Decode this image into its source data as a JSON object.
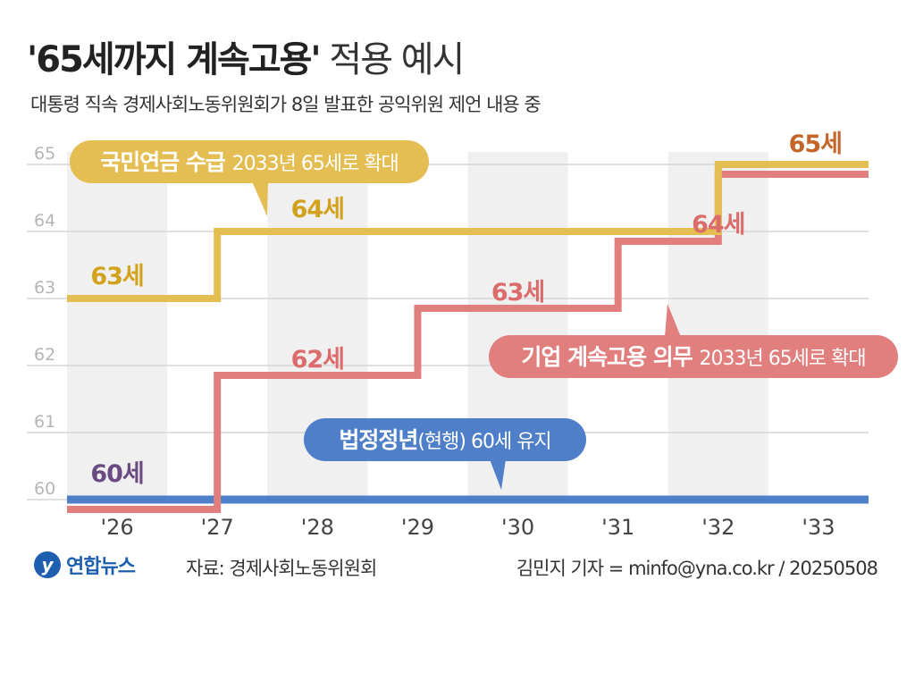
{
  "title": {
    "bold": "'65세까지 계속고용'",
    "light": "적용 예시"
  },
  "subtitle": "대통령 직속 경제사회노동위원회가 8일 발표한 공익위원 제언 내용 중",
  "colors": {
    "pension": "#e4be52",
    "pension_text": "#d3a21d",
    "employment": "#e17f7e",
    "employment_text": "#dc6b6b",
    "retirement": "#4f7fc9",
    "current_label": "#6b4a84",
    "last_label": "#c4652a",
    "band": "#f0f0f0",
    "grid": "#d6d6d6",
    "axis_text": "#444444",
    "ytick_text": "#b5b5b5"
  },
  "chart_data": {
    "type": "line",
    "step": true,
    "title": "'65세까지 계속고용' 적용 예시",
    "xlabel": "",
    "ylabel": "",
    "categories": [
      "'26",
      "'27",
      "'28",
      "'29",
      "'30",
      "'31",
      "'32",
      "'33"
    ],
    "yticks": [
      60,
      61,
      62,
      63,
      64,
      65
    ],
    "ylim": [
      60,
      65
    ],
    "grid": true,
    "series": [
      {
        "name": "국민연금 수급",
        "values": [
          63,
          63,
          64,
          64,
          64,
          64,
          64,
          65
        ],
        "labels": [
          {
            "index": 0,
            "text": "63세"
          },
          {
            "index": 2,
            "text": "64세"
          },
          {
            "index": 7,
            "text": "65세"
          }
        ],
        "callout": {
          "bold": "국민연금 수급",
          "light": "2033년 65세로 확대"
        }
      },
      {
        "name": "기업 계속고용 의무",
        "values": [
          60,
          60,
          62,
          62,
          63,
          63,
          64,
          65
        ],
        "labels": [
          {
            "index": 0,
            "text": "60세"
          },
          {
            "index": 2,
            "text": "62세"
          },
          {
            "index": 4,
            "text": "63세"
          },
          {
            "index": 6,
            "text": "64세"
          }
        ],
        "callout": {
          "bold": "기업 계속고용 의무",
          "light": "2033년 65세로 확대"
        }
      },
      {
        "name": "법정정년(현행)",
        "values": [
          60,
          60,
          60,
          60,
          60,
          60,
          60,
          60
        ],
        "callout": {
          "bold": "법정정년",
          "paren": "(현행)",
          "light": "60세 유지"
        }
      }
    ]
  },
  "footer": {
    "logo_mark": "y",
    "logo_name": "연합뉴스",
    "source": "자료: 경제사회노동위원회",
    "credit": "김민지 기자 = minfo@yna.co.kr / 20250508"
  }
}
